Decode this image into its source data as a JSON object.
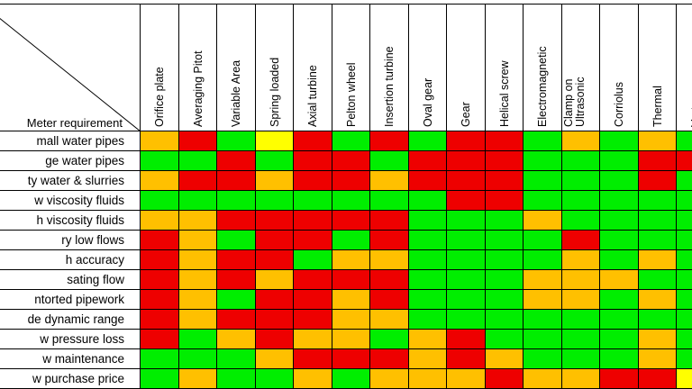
{
  "corner_label": "Meter requirement",
  "columns": [
    "Orifice plate",
    "Averaging Pitot",
    "Variable Area",
    "Spring loaded",
    "Axial turbine",
    "Pelton wheel",
    "Insertion turbine",
    "Oval gear",
    "Gear",
    "Helical screw",
    "Electromagnetic",
    [
      "Clamp on",
      "Ultrasonic"
    ],
    "Corriolus",
    "Thermal",
    "Vortex"
  ],
  "rows": [
    {
      "label": "mall water pipes",
      "ratings": [
        "O",
        "R",
        "G",
        "Y",
        "R",
        "G",
        "R",
        "G",
        "R",
        "R",
        "G",
        "O",
        "G",
        "O",
        "G"
      ]
    },
    {
      "label": "ge water pipes",
      "ratings": [
        "G",
        "G",
        "R",
        "G",
        "R",
        "R",
        "G",
        "R",
        "R",
        "R",
        "G",
        "G",
        "G",
        "R",
        "R"
      ]
    },
    {
      "label": "ty water & slurries",
      "ratings": [
        "O",
        "R",
        "R",
        "O",
        "R",
        "R",
        "O",
        "R",
        "R",
        "R",
        "G",
        "G",
        "G",
        "R",
        "G"
      ]
    },
    {
      "label": "w viscosity fluids",
      "ratings": [
        "G",
        "G",
        "G",
        "G",
        "G",
        "G",
        "G",
        "G",
        "R",
        "R",
        "G",
        "G",
        "G",
        "G",
        "G"
      ]
    },
    {
      "label": "h viscosity fluids",
      "ratings": [
        "O",
        "O",
        "R",
        "R",
        "R",
        "R",
        "R",
        "G",
        "G",
        "G",
        "O",
        "G",
        "G",
        "G",
        "G"
      ]
    },
    {
      "label": "ry low flows",
      "ratings": [
        "R",
        "O",
        "G",
        "R",
        "R",
        "G",
        "R",
        "G",
        "G",
        "G",
        "G",
        "R",
        "G",
        "G",
        "G"
      ]
    },
    {
      "label": "h accuracy",
      "ratings": [
        "R",
        "O",
        "R",
        "R",
        "G",
        "O",
        "O",
        "G",
        "G",
        "G",
        "G",
        "O",
        "G",
        "O",
        "G"
      ]
    },
    {
      "label": "sating flow",
      "ratings": [
        "R",
        "O",
        "R",
        "O",
        "R",
        "R",
        "R",
        "G",
        "G",
        "G",
        "O",
        "O",
        "O",
        "G",
        "G"
      ]
    },
    {
      "label": "ntorted pipework",
      "ratings": [
        "R",
        "O",
        "G",
        "R",
        "R",
        "O",
        "R",
        "G",
        "G",
        "G",
        "O",
        "O",
        "G",
        "O",
        "G"
      ]
    },
    {
      "label": "de dynamic range",
      "ratings": [
        "R",
        "O",
        "R",
        "R",
        "R",
        "O",
        "O",
        "G",
        "G",
        "G",
        "G",
        "G",
        "G",
        "G",
        "G"
      ]
    },
    {
      "label": "w pressure loss",
      "ratings": [
        "R",
        "G",
        "O",
        "R",
        "O",
        "O",
        "G",
        "O",
        "R",
        "G",
        "G",
        "G",
        "G",
        "O",
        "G"
      ]
    },
    {
      "label": "w maintenance",
      "ratings": [
        "G",
        "G",
        "G",
        "O",
        "R",
        "R",
        "R",
        "O",
        "R",
        "O",
        "G",
        "G",
        "G",
        "O",
        "G"
      ]
    },
    {
      "label": "w purchase price",
      "ratings": [
        "G",
        "O",
        "G",
        "G",
        "O",
        "G",
        "O",
        "O",
        "O",
        "R",
        "O",
        "O",
        "R",
        "R",
        "Y"
      ]
    }
  ],
  "colors": {
    "G": "#00ee00",
    "R": "#ee0000",
    "O": "#ffc000",
    "Y": "#ffff00"
  }
}
